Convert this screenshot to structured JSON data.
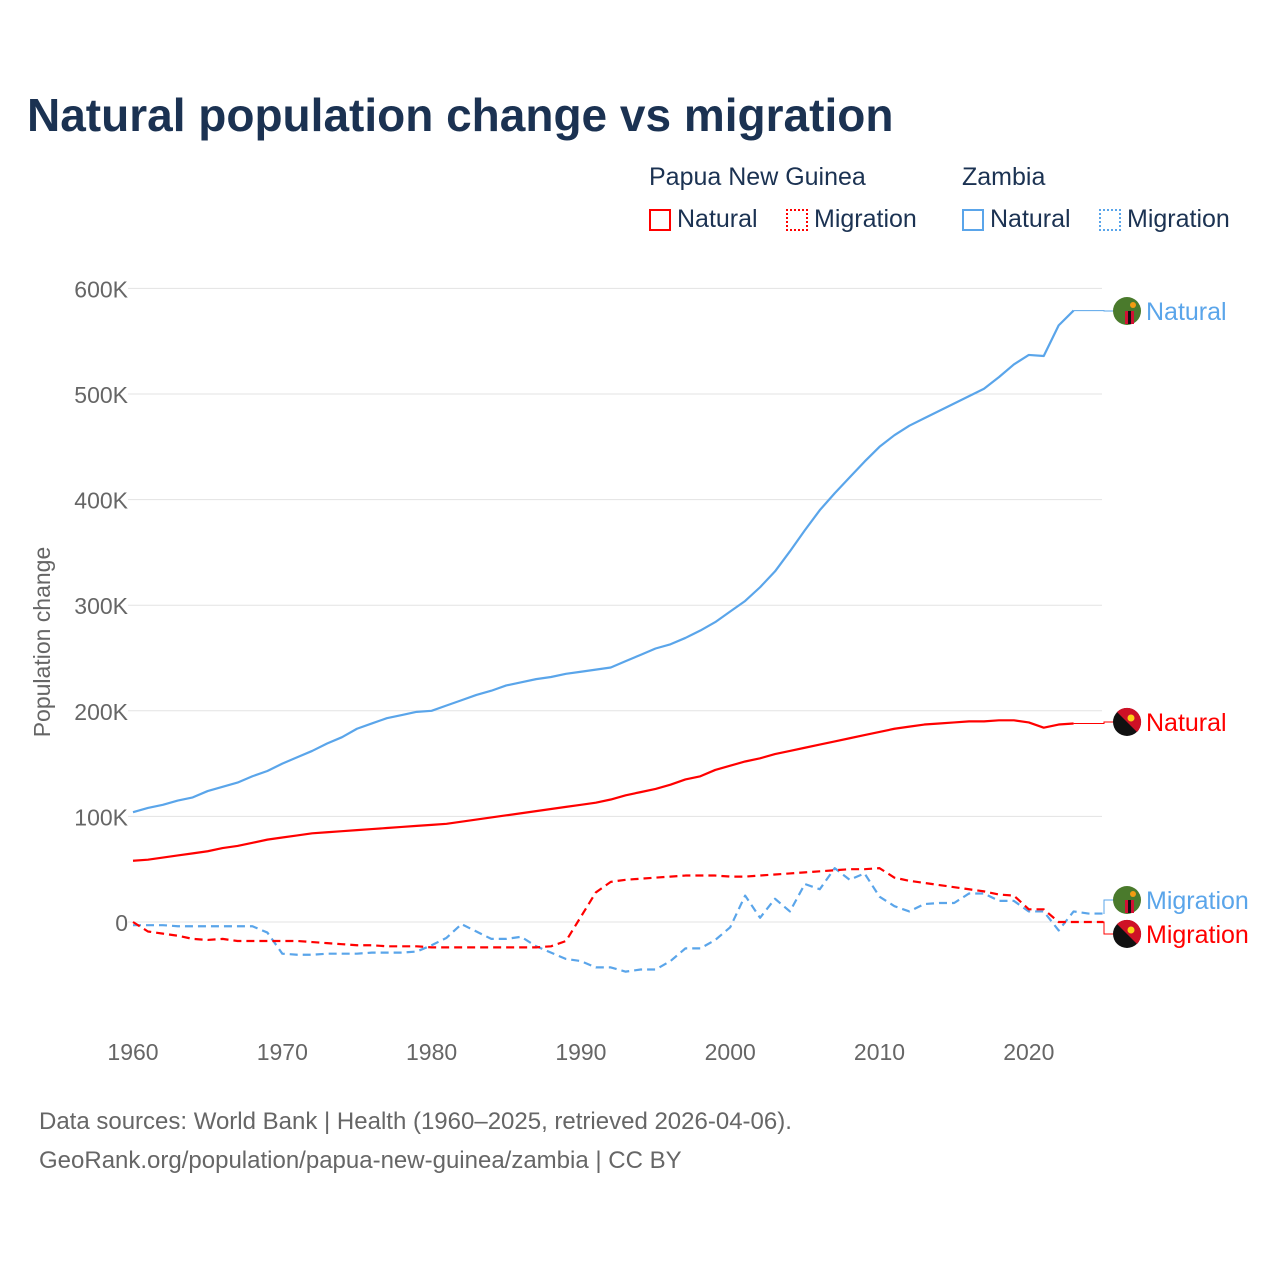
{
  "title": "Natural population change vs migration",
  "legend": {
    "groups": [
      {
        "name": "Papua New Guinea",
        "items": [
          "Natural",
          "Migration"
        ],
        "color": "#ff0000"
      },
      {
        "name": "Zambia",
        "items": [
          "Natural",
          "Migration"
        ],
        "color": "#5aa5ea"
      }
    ]
  },
  "footer": {
    "line1": "Data sources: World Bank | Health (1960–2025, retrieved 2026-04-06).",
    "line2": "GeoRank.org/population/papua-new-guinea/zambia | CC BY"
  },
  "chart_data": {
    "type": "line",
    "title": "Natural population change vs migration",
    "xlabel": "",
    "ylabel": "Population change",
    "xlim": [
      1960,
      2025
    ],
    "ylim": [
      -90000,
      620000
    ],
    "x_ticks": [
      "1960",
      "1970",
      "1980",
      "1990",
      "2000",
      "2010",
      "2020"
    ],
    "y_ticks": [
      {
        "v": 0,
        "label": "0"
      },
      {
        "v": 100000,
        "label": "100K"
      },
      {
        "v": 200000,
        "label": "200K"
      },
      {
        "v": 300000,
        "label": "300K"
      },
      {
        "v": 400000,
        "label": "400K"
      },
      {
        "v": 500000,
        "label": "500K"
      },
      {
        "v": 600000,
        "label": "600K"
      }
    ],
    "grid": true,
    "series": [
      {
        "name": "Zambia Natural",
        "label": "Natural",
        "color": "#5aa5ea",
        "dash": false,
        "flag": "zambia",
        "start": 1960,
        "values_k": [
          104,
          108,
          111,
          115,
          118,
          124,
          128,
          132,
          138,
          143,
          150,
          156,
          162,
          169,
          175,
          183,
          188,
          193,
          196,
          199,
          200,
          205,
          210,
          215,
          219,
          224,
          227,
          230,
          232,
          235,
          237,
          239,
          241,
          247,
          253,
          259,
          263,
          269,
          276,
          284,
          294,
          304,
          317,
          332,
          351,
          371,
          390,
          406,
          421,
          436,
          450,
          461,
          470,
          477,
          484,
          491,
          498,
          505,
          516,
          528,
          537,
          536,
          565,
          579
        ]
      },
      {
        "name": "Papua New Guinea Natural",
        "label": "Natural",
        "color": "#ff0000",
        "dash": false,
        "flag": "png",
        "start": 1960,
        "values_k": [
          58,
          59,
          61,
          63,
          65,
          67,
          70,
          72,
          75,
          78,
          80,
          82,
          84,
          85,
          86,
          87,
          88,
          89,
          90,
          91,
          92,
          93,
          95,
          97,
          99,
          101,
          103,
          105,
          107,
          109,
          111,
          113,
          116,
          120,
          123,
          126,
          130,
          135,
          138,
          144,
          148,
          152,
          155,
          159,
          162,
          165,
          168,
          171,
          174,
          177,
          180,
          183,
          185,
          187,
          188,
          189,
          190,
          190,
          191,
          191,
          189,
          184,
          187,
          188
        ]
      },
      {
        "name": "Zambia Migration",
        "label": "Migration",
        "color": "#5aa5ea",
        "dash": true,
        "flag": "zambia",
        "start": 1960,
        "values_k": [
          -3,
          -3,
          -3,
          -4,
          -4,
          -4,
          -4,
          -4,
          -4,
          -10,
          -30,
          -31,
          -31,
          -30,
          -30,
          -30,
          -29,
          -29,
          -29,
          -28,
          -22,
          -15,
          -2,
          -9,
          -16,
          -16,
          -14,
          -23,
          -29,
          -35,
          -37,
          -43,
          -43,
          -47,
          -45,
          -45,
          -37,
          -25,
          -25,
          -17,
          -5,
          25,
          4,
          22,
          10,
          36,
          31,
          51,
          40,
          46,
          24,
          15,
          10,
          17,
          18,
          18,
          27,
          27,
          20,
          20,
          10,
          10,
          -8,
          10,
          8,
          8
        ]
      },
      {
        "name": "Papua New Guinea Migration",
        "label": "Migration",
        "color": "#ff0000",
        "dash": true,
        "flag": "png",
        "start": 1960,
        "values_k": [
          0,
          -9,
          -11,
          -13,
          -16,
          -17,
          -16,
          -18,
          -18,
          -18,
          -18,
          -18,
          -19,
          -20,
          -21,
          -22,
          -22,
          -23,
          -23,
          -23,
          -24,
          -24,
          -24,
          -24,
          -24,
          -24,
          -24,
          -24,
          -23,
          -18,
          5,
          28,
          38,
          40,
          41,
          42,
          43,
          44,
          44,
          44,
          43,
          43,
          44,
          45,
          46,
          47,
          48,
          49,
          50,
          50,
          51,
          42,
          39,
          37,
          35,
          33,
          31,
          29,
          26,
          25,
          12,
          12,
          0,
          0,
          0,
          0
        ]
      }
    ]
  }
}
